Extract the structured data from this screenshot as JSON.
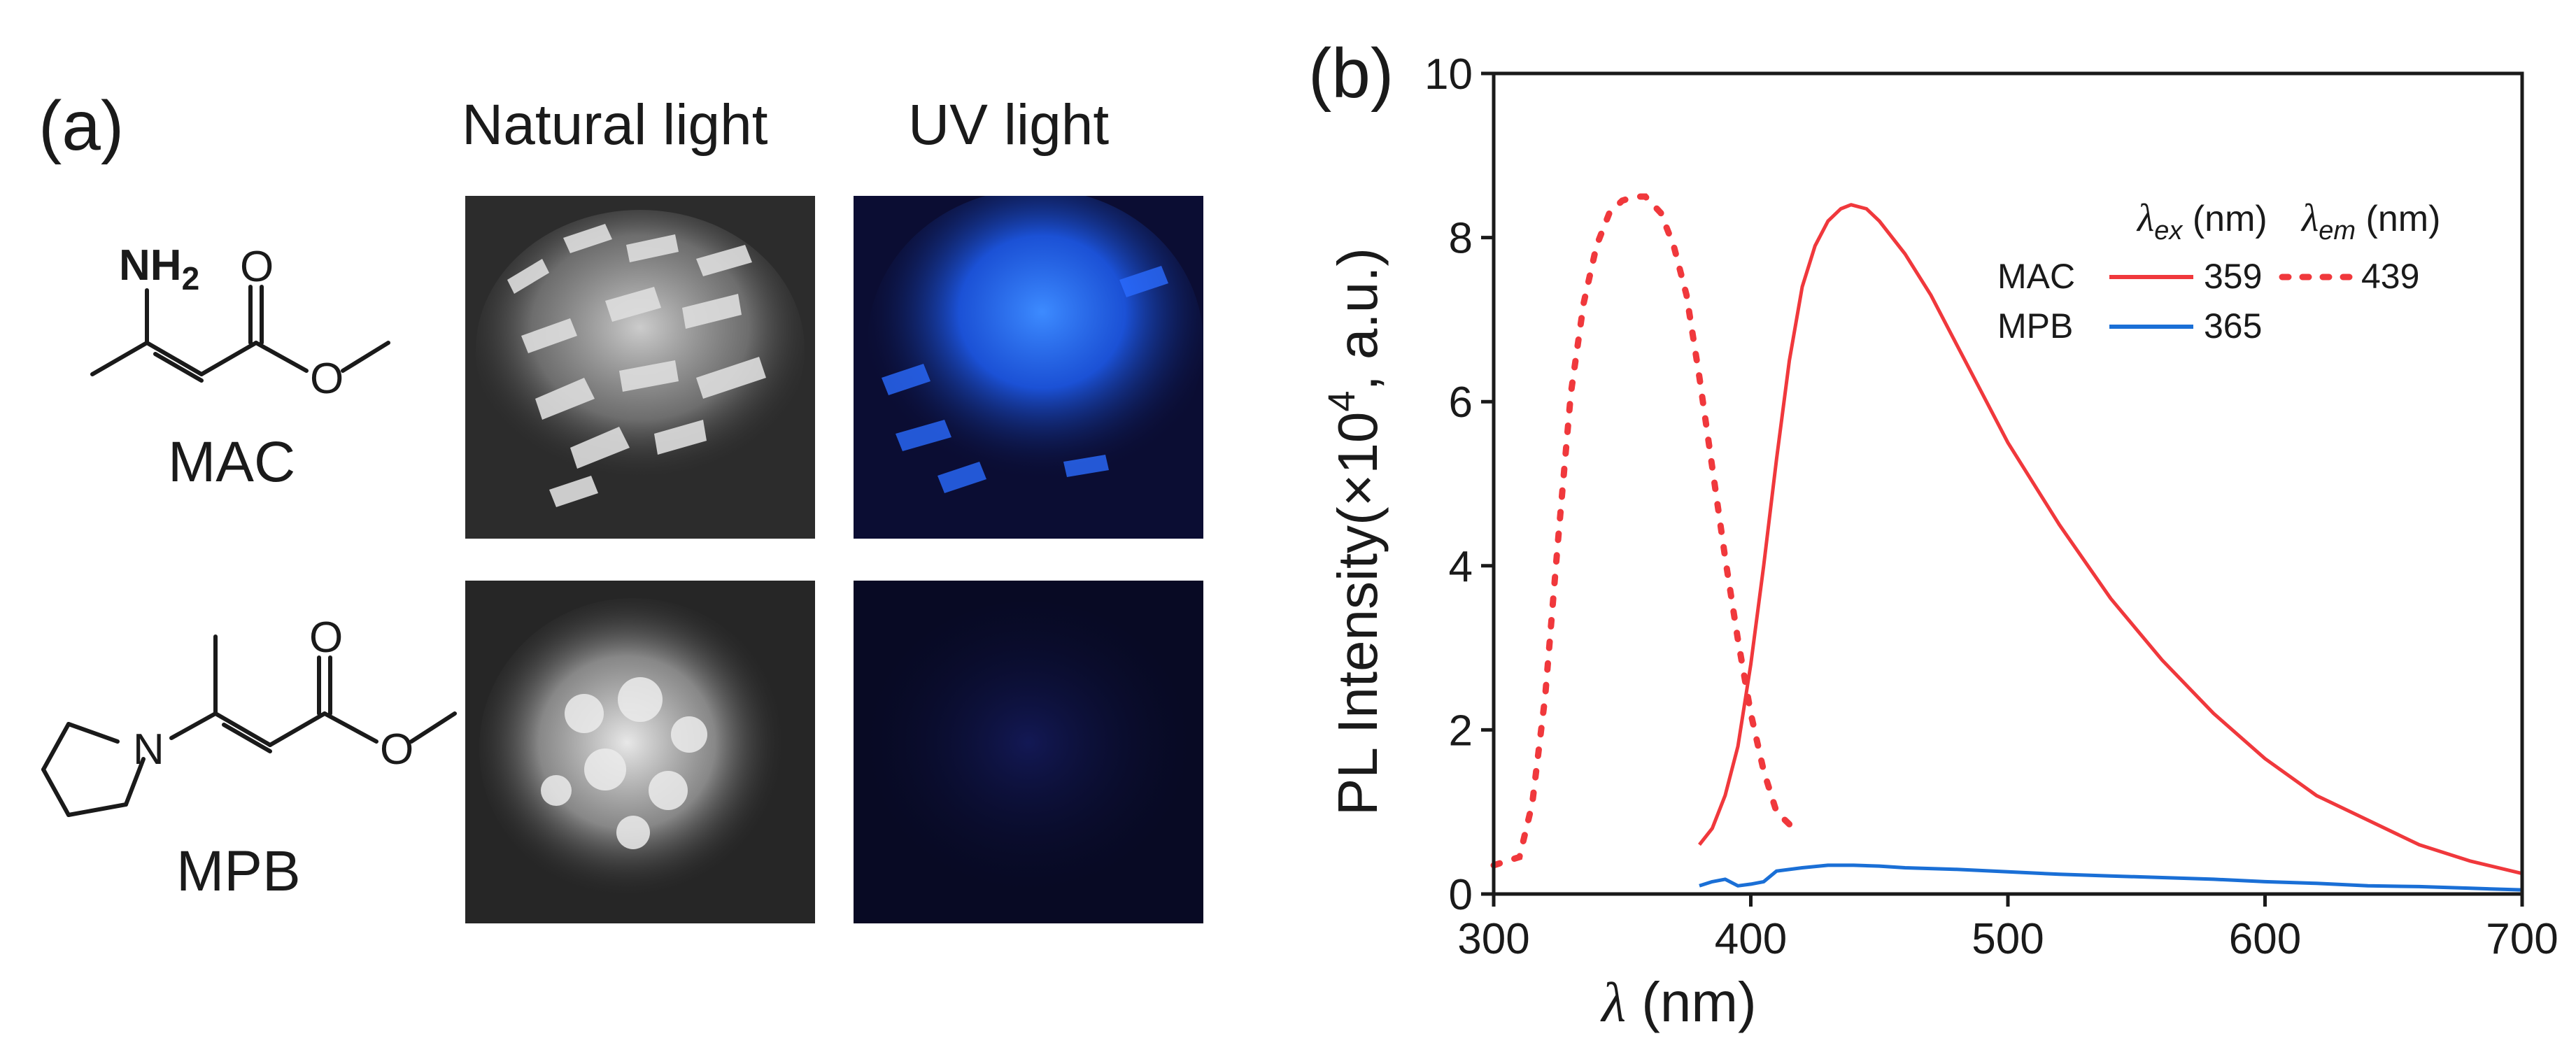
{
  "panel_a": {
    "label": "(a)",
    "column_headers": [
      "Natural  light",
      "UV light"
    ],
    "molecules": [
      {
        "name": "MAC",
        "amine_label": "NH",
        "amine_subscript": "2",
        "carbonyl_O": "O",
        "ester_O": "O"
      },
      {
        "name": "MPB",
        "amine_label": "N",
        "carbonyl_O": "O",
        "ester_O": "O"
      }
    ]
  },
  "panel_b": {
    "label": "(b)"
  },
  "colors": {
    "mac": "#f0383c",
    "mpb": "#1a6fd6",
    "axis": "#1a1a1a",
    "uv_glow": "#1e6cff",
    "crystal": "#d6d6d6"
  },
  "chart_data": {
    "type": "line",
    "xlabel_symbol": "λ",
    "xlabel_unit": " (nm)",
    "ylabel": "PL Intensity(×10",
    "ylabel_sup": "4",
    "ylabel_tail": ", a.u.)",
    "xlim": [
      300,
      700
    ],
    "ylim": [
      0,
      10
    ],
    "xticks": [
      "300",
      "400",
      "500",
      "600",
      "700"
    ],
    "yticks": [
      "0",
      "2",
      "4",
      "6",
      "8",
      "10"
    ],
    "legend": {
      "header_ex_symbol": "λ",
      "header_ex_sub": "ex",
      "header_ex_unit": " (nm)",
      "header_em_symbol": "λ",
      "header_em_sub": "em",
      "header_em_unit": " (nm)",
      "rows": [
        {
          "name": "MAC",
          "ex": "359",
          "em": "439"
        },
        {
          "name": "MPB",
          "ex": "365"
        }
      ]
    },
    "series": [
      {
        "name": "MAC excitation",
        "style": "dotted",
        "color": "#f0383c",
        "x": [
          300,
          310,
          315,
          320,
          325,
          330,
          335,
          340,
          345,
          350,
          355,
          359,
          365,
          370,
          375,
          380,
          385,
          390,
          395,
          400,
          405,
          410,
          415
        ],
        "y": [
          0.35,
          0.45,
          1.1,
          2.4,
          4.3,
          6.1,
          7.2,
          7.9,
          8.3,
          8.45,
          8.5,
          8.5,
          8.3,
          7.9,
          7.3,
          6.3,
          5.2,
          4.1,
          3.1,
          2.2,
          1.5,
          1.0,
          0.85
        ]
      },
      {
        "name": "MAC emission",
        "style": "solid",
        "color": "#f0383c",
        "x": [
          380,
          385,
          390,
          395,
          400,
          405,
          410,
          415,
          420,
          425,
          430,
          435,
          439,
          445,
          450,
          460,
          470,
          480,
          490,
          500,
          520,
          540,
          560,
          580,
          600,
          620,
          640,
          660,
          680,
          700
        ],
        "y": [
          0.6,
          0.8,
          1.2,
          1.8,
          2.8,
          4.0,
          5.3,
          6.5,
          7.4,
          7.9,
          8.2,
          8.35,
          8.4,
          8.35,
          8.2,
          7.8,
          7.3,
          6.7,
          6.1,
          5.5,
          4.5,
          3.6,
          2.85,
          2.2,
          1.65,
          1.2,
          0.9,
          0.6,
          0.4,
          0.25
        ]
      },
      {
        "name": "MPB emission",
        "style": "solid",
        "color": "#1a6fd6",
        "x": [
          380,
          385,
          390,
          395,
          400,
          405,
          410,
          420,
          430,
          440,
          450,
          460,
          480,
          500,
          520,
          540,
          560,
          580,
          600,
          620,
          640,
          660,
          680,
          700
        ],
        "y": [
          0.1,
          0.15,
          0.18,
          0.1,
          0.12,
          0.15,
          0.28,
          0.32,
          0.35,
          0.35,
          0.34,
          0.32,
          0.3,
          0.27,
          0.24,
          0.22,
          0.2,
          0.18,
          0.15,
          0.13,
          0.1,
          0.09,
          0.07,
          0.05
        ]
      }
    ]
  }
}
